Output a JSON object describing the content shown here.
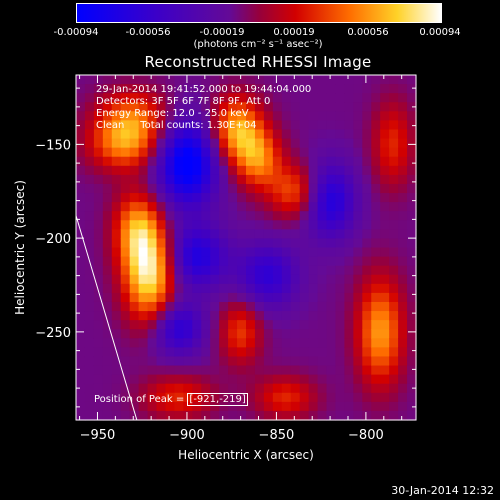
{
  "colorbar": {
    "ticks": [
      "-0.00094",
      "-0.00056",
      "-0.00019",
      "0.00019",
      "0.00056",
      "0.00094"
    ],
    "units": "(photons cm⁻² s⁻¹ asec⁻²)",
    "range": [
      -0.00094,
      0.00094
    ]
  },
  "chart_data": {
    "type": "heatmap",
    "title": "Reconstructed RHESSI Image",
    "xlabel": "Heliocentric X (arcsec)",
    "ylabel": "Heliocentric Y (arcsec)",
    "xlim": [
      -962,
      -772
    ],
    "ylim": [
      -297,
      -113
    ],
    "xticks": [
      -950,
      -900,
      -850,
      -800
    ],
    "yticks": [
      -150,
      -200,
      -250
    ],
    "xtick_labels": [
      "−950",
      "−900",
      "−850",
      "−800"
    ],
    "ytick_labels": [
      "−150",
      "−200",
      "−250"
    ],
    "limb_line": [
      [
        -962,
        -188
      ],
      [
        -928,
        -297
      ]
    ],
    "sources": [
      {
        "x": -921,
        "y": -219,
        "amp": 0.00094,
        "sx": 10,
        "sy": 18
      },
      {
        "x": -928,
        "y": -195,
        "amp": 0.0006,
        "sx": 9,
        "sy": 14
      },
      {
        "x": -935,
        "y": -150,
        "amp": 0.0006,
        "sx": 14,
        "sy": 10
      },
      {
        "x": -930,
        "y": -135,
        "amp": 0.0005,
        "sx": 14,
        "sy": 10
      },
      {
        "x": -872,
        "y": -142,
        "amp": 0.00075,
        "sx": 10,
        "sy": 12
      },
      {
        "x": -860,
        "y": -158,
        "amp": 0.0006,
        "sx": 9,
        "sy": 11
      },
      {
        "x": -840,
        "y": -175,
        "amp": 0.0005,
        "sx": 10,
        "sy": 10
      },
      {
        "x": -792,
        "y": -250,
        "amp": 0.0007,
        "sx": 9,
        "sy": 20
      },
      {
        "x": -785,
        "y": -150,
        "amp": 0.0004,
        "sx": 8,
        "sy": 16
      },
      {
        "x": -870,
        "y": -250,
        "amp": 0.00045,
        "sx": 8,
        "sy": 12
      },
      {
        "x": -905,
        "y": -285,
        "amp": 0.0004,
        "sx": 14,
        "sy": 8
      },
      {
        "x": -845,
        "y": -285,
        "amp": 0.0004,
        "sx": 12,
        "sy": 8
      },
      {
        "x": -900,
        "y": -160,
        "amp": -0.0009,
        "sx": 12,
        "sy": 16
      },
      {
        "x": -895,
        "y": -210,
        "amp": -0.0006,
        "sx": 12,
        "sy": 12
      },
      {
        "x": -855,
        "y": -220,
        "amp": -0.0005,
        "sx": 12,
        "sy": 12
      },
      {
        "x": -820,
        "y": -180,
        "amp": -0.0006,
        "sx": 10,
        "sy": 14
      },
      {
        "x": -905,
        "y": -248,
        "amp": -0.00055,
        "sx": 10,
        "sy": 10
      }
    ]
  },
  "info": {
    "line1": "29-Jan-2014 19:41:52.000 to 19:44:04.000",
    "line2": "Detectors: 3F 5F 6F 7F 8F 9F, Att 0",
    "line3": "Energy Range: 12.0 - 25.0 keV",
    "line4": "Clean     Total counts: 1.30E+04",
    "peak_prefix": "Position of Peak = ",
    "peak_value": "[-921,-219]"
  },
  "footer": "30-Jan-2014 12:32"
}
